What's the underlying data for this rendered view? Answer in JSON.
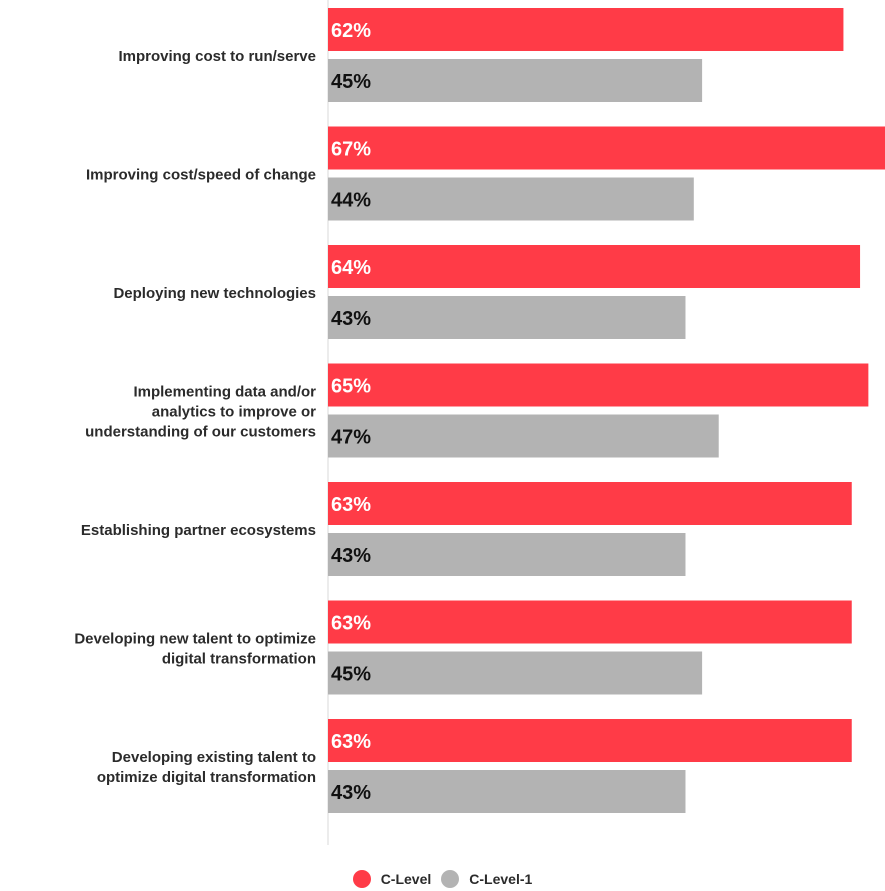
{
  "chart_data": {
    "type": "bar",
    "orientation": "horizontal",
    "categories": [
      "Improving cost to run/serve",
      "Improving cost/speed of change",
      "Deploying new technologies",
      "Implementing data and/or analytics to improve or understanding of our customers",
      "Establishing partner ecosystems",
      "Developing new talent to optimize digital transformation",
      "Developing existing talent to optimize digital transformation"
    ],
    "category_lines": [
      [
        "Improving cost to run/serve"
      ],
      [
        "Improving cost/speed of change"
      ],
      [
        "Deploying new technologies"
      ],
      [
        "Implementing data and/or",
        "analytics to improve or",
        "understanding of our customers"
      ],
      [
        "Establishing partner ecosystems"
      ],
      [
        "Developing new talent to optimize",
        "digital transformation"
      ],
      [
        "Developing existing talent to",
        "optimize digital transformation"
      ]
    ],
    "series": [
      {
        "name": "C-Level",
        "color": "#ff3b47",
        "label_color": "#ffffff",
        "values": [
          62,
          67,
          64,
          65,
          63,
          63,
          63
        ]
      },
      {
        "name": "C-Level-1",
        "color": "#b3b3b3",
        "label_color": "#111111",
        "values": [
          45,
          44,
          43,
          47,
          43,
          45,
          43
        ]
      }
    ],
    "value_suffix": "%",
    "xlim": [
      0,
      67
    ],
    "legend_position": "bottom-center",
    "grid": false
  }
}
